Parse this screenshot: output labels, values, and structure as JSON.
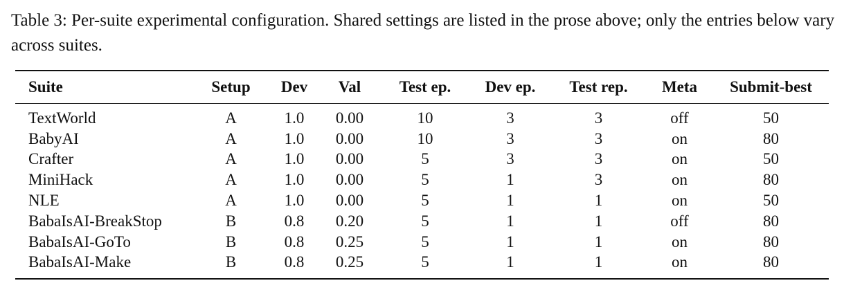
{
  "caption": "Table 3: Per-suite experimental configuration. Shared settings are listed in the prose above; only the entries below vary across suites.",
  "table": {
    "headers": [
      "Suite",
      "Setup",
      "Dev",
      "Val",
      "Test ep.",
      "Dev ep.",
      "Test rep.",
      "Meta",
      "Submit-best"
    ],
    "rows": [
      [
        "TextWorld",
        "A",
        "1.0",
        "0.00",
        "10",
        "3",
        "3",
        "off",
        "50"
      ],
      [
        "BabyAI",
        "A",
        "1.0",
        "0.00",
        "10",
        "3",
        "3",
        "on",
        "80"
      ],
      [
        "Crafter",
        "A",
        "1.0",
        "0.00",
        "5",
        "3",
        "3",
        "on",
        "50"
      ],
      [
        "MiniHack",
        "A",
        "1.0",
        "0.00",
        "5",
        "1",
        "3",
        "on",
        "80"
      ],
      [
        "NLE",
        "A",
        "1.0",
        "0.00",
        "5",
        "1",
        "1",
        "on",
        "50"
      ],
      [
        "BabaIsAI-BreakStop",
        "B",
        "0.8",
        "0.20",
        "5",
        "1",
        "1",
        "off",
        "80"
      ],
      [
        "BabaIsAI-GoTo",
        "B",
        "0.8",
        "0.25",
        "5",
        "1",
        "1",
        "on",
        "80"
      ],
      [
        "BabaIsAI-Make",
        "B",
        "0.8",
        "0.25",
        "5",
        "1",
        "1",
        "on",
        "80"
      ]
    ]
  }
}
